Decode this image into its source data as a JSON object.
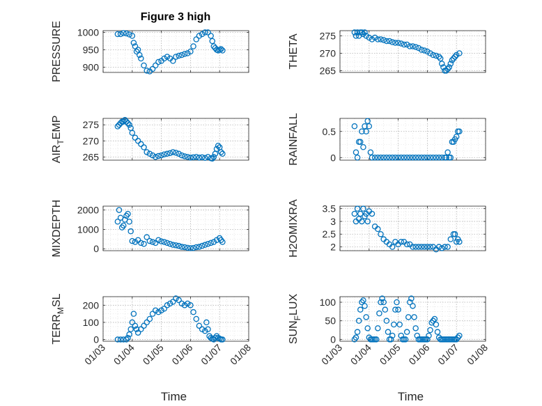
{
  "figure_title": "Figure 3 high",
  "colors": {
    "marker": "#0072BD",
    "axis": "#262626",
    "grid": "#b0b0b0",
    "background": "#ffffff"
  },
  "xaxis": {
    "label": "Time",
    "ticks": [
      3,
      4,
      5,
      6,
      7,
      8
    ],
    "tick_labels": [
      "01/03",
      "01/04",
      "01/05",
      "01/06",
      "01/07",
      "01/08"
    ],
    "range": [
      3,
      8
    ]
  },
  "chart_data": [
    {
      "type": "scatter",
      "ylabel": "PRESSURE",
      "title": "Figure 3 high",
      "ylim": [
        885,
        1005
      ],
      "yticks": [
        900,
        950,
        1000
      ],
      "ytick_labels": [
        "900",
        "950",
        "1000"
      ],
      "x": [
        3.5,
        3.6,
        3.7,
        3.8,
        3.9,
        4.0,
        4.05,
        4.1,
        4.15,
        4.2,
        4.25,
        4.3,
        4.4,
        4.5,
        4.6,
        4.7,
        4.8,
        4.9,
        5.0,
        5.1,
        5.2,
        5.3,
        5.4,
        5.5,
        5.6,
        5.7,
        5.8,
        5.9,
        6.0,
        6.1,
        6.2,
        6.3,
        6.4,
        6.5,
        6.6,
        6.7,
        6.75,
        6.8,
        6.85,
        6.9,
        6.95,
        7.0,
        7.05,
        7.1
      ],
      "y": [
        995,
        995,
        998,
        997,
        994,
        990,
        970,
        960,
        945,
        950,
        935,
        925,
        905,
        890,
        888,
        895,
        905,
        915,
        918,
        925,
        930,
        925,
        918,
        930,
        933,
        935,
        938,
        940,
        945,
        960,
        980,
        990,
        995,
        1000,
        1000,
        990,
        975,
        960,
        955,
        950,
        948,
        950,
        952,
        948
      ]
    },
    {
      "type": "scatter",
      "ylabel": "THETA",
      "ylim": [
        264.5,
        276.5
      ],
      "yticks": [
        265,
        270,
        275
      ],
      "ytick_labels": [
        "265",
        "270",
        "275"
      ],
      "x": [
        3.5,
        3.55,
        3.6,
        3.65,
        3.7,
        3.75,
        3.8,
        3.85,
        3.9,
        4.0,
        4.1,
        4.2,
        4.3,
        4.4,
        4.5,
        4.6,
        4.7,
        4.8,
        4.9,
        5.0,
        5.1,
        5.2,
        5.3,
        5.4,
        5.5,
        5.6,
        5.7,
        5.8,
        5.9,
        6.0,
        6.1,
        6.2,
        6.3,
        6.4,
        6.45,
        6.5,
        6.55,
        6.6,
        6.65,
        6.7,
        6.75,
        6.8,
        6.85,
        6.9,
        6.95,
        7.0,
        7.1
      ],
      "y": [
        276,
        275,
        276,
        275,
        276,
        276,
        275.5,
        276,
        275,
        274.5,
        274,
        274.5,
        274,
        274,
        273.8,
        273.5,
        273.5,
        273.2,
        273,
        273,
        272.8,
        272.5,
        272.5,
        272,
        272,
        271.8,
        271.5,
        271,
        270.8,
        270.5,
        270,
        269.5,
        269.3,
        269,
        268.5,
        267,
        266,
        265,
        265,
        265.5,
        266,
        267,
        268,
        268.5,
        269,
        269.5,
        270
      ]
    },
    {
      "type": "scatter",
      "ylabel": "AIR_TEMP",
      "ylabel_parts": [
        "AIR",
        "T",
        "EMP"
      ],
      "ylim": [
        264,
        277
      ],
      "yticks": [
        265,
        270,
        275
      ],
      "ytick_labels": [
        "265",
        "270",
        "275"
      ],
      "x": [
        3.5,
        3.55,
        3.6,
        3.65,
        3.7,
        3.75,
        3.8,
        3.85,
        3.9,
        3.95,
        4.0,
        4.1,
        4.2,
        4.3,
        4.4,
        4.5,
        4.6,
        4.7,
        4.8,
        4.9,
        5.0,
        5.1,
        5.2,
        5.3,
        5.4,
        5.5,
        5.6,
        5.7,
        5.8,
        5.9,
        6.0,
        6.1,
        6.2,
        6.3,
        6.4,
        6.5,
        6.6,
        6.7,
        6.75,
        6.8,
        6.85,
        6.9,
        6.95,
        7.0,
        7.05,
        7.1
      ],
      "y": [
        274.5,
        275,
        275.5,
        276,
        276,
        276.5,
        276,
        275.5,
        275,
        274,
        272.5,
        271,
        270,
        269,
        268,
        266.5,
        266,
        265.5,
        265,
        265.3,
        265.5,
        265.8,
        266,
        266.2,
        266.5,
        266.3,
        266,
        265.5,
        265.2,
        265,
        264.8,
        264.9,
        265,
        264.8,
        264.9,
        264.7,
        265,
        264.6,
        264.5,
        265,
        266,
        267.5,
        268.5,
        268,
        266.5,
        266
      ]
    },
    {
      "type": "scatter",
      "ylabel": "RAINFALL",
      "ylim": [
        -0.05,
        0.75
      ],
      "yticks": [
        0,
        0.5
      ],
      "ytick_labels": [
        "0",
        "0.5"
      ],
      "x": [
        3.5,
        3.55,
        3.6,
        3.65,
        3.7,
        3.75,
        3.8,
        3.85,
        3.9,
        3.95,
        4.0,
        4.05,
        4.1,
        4.2,
        4.3,
        4.4,
        4.5,
        4.6,
        4.7,
        4.8,
        4.9,
        5.0,
        5.1,
        5.2,
        5.3,
        5.4,
        5.5,
        5.6,
        5.7,
        5.8,
        5.9,
        6.0,
        6.1,
        6.2,
        6.3,
        6.4,
        6.5,
        6.6,
        6.65,
        6.7,
        6.75,
        6.8,
        6.85,
        6.9,
        6.95,
        7.0,
        7.05,
        7.1
      ],
      "y": [
        0.6,
        0.1,
        0.0,
        0.3,
        0.3,
        0.5,
        0.2,
        0.6,
        0.5,
        0.7,
        0.6,
        0.1,
        0.0,
        0.0,
        0.0,
        0.0,
        0.0,
        0.0,
        0.0,
        0.0,
        0.0,
        0.0,
        0.0,
        0.0,
        0.0,
        0.0,
        0.0,
        0.0,
        0.0,
        0.0,
        0.0,
        0.0,
        0.0,
        0.0,
        0.0,
        0.0,
        0.0,
        0.0,
        0.0,
        0.1,
        0.0,
        0.0,
        0.3,
        0.3,
        0.35,
        0.4,
        0.5,
        0.5
      ]
    },
    {
      "type": "scatter",
      "ylabel": "MIXDEPTH",
      "ylim": [
        -100,
        2200
      ],
      "yticks": [
        0,
        1000,
        2000
      ],
      "ytick_labels": [
        "0",
        "1000",
        "2000"
      ],
      "x": [
        3.5,
        3.55,
        3.6,
        3.65,
        3.7,
        3.75,
        3.8,
        3.85,
        3.9,
        3.95,
        4.0,
        4.1,
        4.2,
        4.3,
        4.4,
        4.5,
        4.6,
        4.7,
        4.8,
        4.9,
        5.0,
        5.1,
        5.2,
        5.3,
        5.4,
        5.5,
        5.6,
        5.7,
        5.8,
        5.9,
        6.0,
        6.1,
        6.2,
        6.3,
        6.4,
        6.5,
        6.6,
        6.7,
        6.8,
        6.9,
        7.0,
        7.05,
        7.1
      ],
      "y": [
        1400,
        2000,
        1600,
        1100,
        1200,
        1500,
        1700,
        1800,
        1400,
        900,
        400,
        350,
        450,
        300,
        250,
        600,
        400,
        350,
        300,
        450,
        380,
        350,
        300,
        250,
        200,
        180,
        150,
        100,
        80,
        50,
        30,
        40,
        80,
        100,
        150,
        200,
        250,
        300,
        350,
        450,
        550,
        450,
        350
      ]
    },
    {
      "type": "scatter",
      "ylabel": "H2OMIXRA",
      "ylim": [
        1.85,
        3.6
      ],
      "yticks": [
        2,
        2.5,
        3,
        3.5
      ],
      "ytick_labels": [
        "2",
        "2.5",
        "3",
        "3.5"
      ],
      "x": [
        3.5,
        3.55,
        3.6,
        3.65,
        3.7,
        3.75,
        3.8,
        3.85,
        3.9,
        3.95,
        4.0,
        4.1,
        4.2,
        4.3,
        4.4,
        4.5,
        4.6,
        4.7,
        4.8,
        4.9,
        5.0,
        5.1,
        5.2,
        5.3,
        5.4,
        5.5,
        5.6,
        5.7,
        5.8,
        5.9,
        6.0,
        6.1,
        6.2,
        6.3,
        6.4,
        6.5,
        6.6,
        6.7,
        6.8,
        6.9,
        6.95,
        7.0,
        7.05,
        7.1
      ],
      "y": [
        3.3,
        3.0,
        3.5,
        3.1,
        3.3,
        3.0,
        3.5,
        3.2,
        3.3,
        3.0,
        3.4,
        3.3,
        2.8,
        2.7,
        2.5,
        2.3,
        2.2,
        2.1,
        2.0,
        2.2,
        2.1,
        2.2,
        2.2,
        2.1,
        2.1,
        2.0,
        2.0,
        2.0,
        2.0,
        2.0,
        2.0,
        2.0,
        2.0,
        1.9,
        2.0,
        1.95,
        2.0,
        2.0,
        2.3,
        2.5,
        2.5,
        2.2,
        2.3,
        2.2
      ]
    },
    {
      "type": "scatter",
      "ylabel": "TERR_MSL",
      "ylabel_parts": [
        "TERR",
        "M",
        "SL"
      ],
      "ylim": [
        -10,
        250
      ],
      "yticks": [
        0,
        100,
        200
      ],
      "ytick_labels": [
        "0",
        "100",
        "200"
      ],
      "x": [
        3.5,
        3.6,
        3.7,
        3.8,
        3.85,
        3.9,
        3.95,
        4.0,
        4.05,
        4.1,
        4.15,
        4.2,
        4.3,
        4.4,
        4.5,
        4.6,
        4.7,
        4.8,
        4.9,
        5.0,
        5.1,
        5.2,
        5.3,
        5.4,
        5.5,
        5.6,
        5.7,
        5.8,
        5.9,
        6.0,
        6.1,
        6.2,
        6.3,
        6.4,
        6.5,
        6.55,
        6.6,
        6.65,
        6.7,
        6.75,
        6.8,
        6.85,
        6.9,
        6.95,
        7.0,
        7.05,
        7.1
      ],
      "y": [
        0,
        0,
        0,
        0,
        10,
        30,
        60,
        100,
        150,
        80,
        60,
        40,
        60,
        80,
        100,
        120,
        150,
        170,
        160,
        170,
        180,
        200,
        210,
        220,
        240,
        230,
        210,
        200,
        210,
        200,
        160,
        120,
        80,
        60,
        50,
        100,
        60,
        20,
        10,
        5,
        0,
        10,
        20,
        10,
        5,
        0,
        0
      ]
    },
    {
      "type": "scatter",
      "ylabel": "SUN_FLUX",
      "ylabel_parts": [
        "SUN",
        "F",
        "LUX"
      ],
      "ylim": [
        -5,
        115
      ],
      "yticks": [
        0,
        50,
        100
      ],
      "ytick_labels": [
        "0",
        "50",
        "100"
      ],
      "x": [
        3.5,
        3.55,
        3.6,
        3.65,
        3.7,
        3.75,
        3.8,
        3.85,
        3.9,
        3.95,
        4.0,
        4.05,
        4.1,
        4.15,
        4.2,
        4.25,
        4.3,
        4.35,
        4.4,
        4.45,
        4.5,
        4.55,
        4.6,
        4.65,
        4.7,
        4.75,
        4.8,
        4.85,
        4.9,
        4.95,
        5.0,
        5.05,
        5.1,
        5.15,
        5.2,
        5.25,
        5.3,
        5.35,
        5.4,
        5.45,
        5.5,
        5.55,
        5.6,
        5.65,
        5.7,
        5.75,
        5.8,
        5.85,
        5.9,
        5.95,
        6.0,
        6.05,
        6.1,
        6.15,
        6.2,
        6.25,
        6.3,
        6.35,
        6.4,
        6.45,
        6.5,
        6.55,
        6.6,
        6.65,
        6.7,
        6.75,
        6.8,
        6.85,
        6.9,
        6.95,
        7.0,
        7.05,
        7.1
      ],
      "y": [
        0,
        5,
        20,
        50,
        80,
        100,
        105,
        90,
        60,
        30,
        5,
        0,
        0,
        0,
        0,
        0,
        30,
        70,
        100,
        110,
        100,
        80,
        50,
        20,
        0,
        0,
        10,
        40,
        80,
        100,
        80,
        40,
        10,
        0,
        0,
        0,
        20,
        60,
        100,
        110,
        90,
        60,
        30,
        10,
        0,
        0,
        0,
        0,
        0,
        0,
        0,
        10,
        25,
        45,
        50,
        55,
        40,
        20,
        5,
        0,
        0,
        0,
        0,
        0,
        0,
        0,
        0,
        0,
        0,
        0,
        0,
        5,
        10
      ]
    }
  ]
}
